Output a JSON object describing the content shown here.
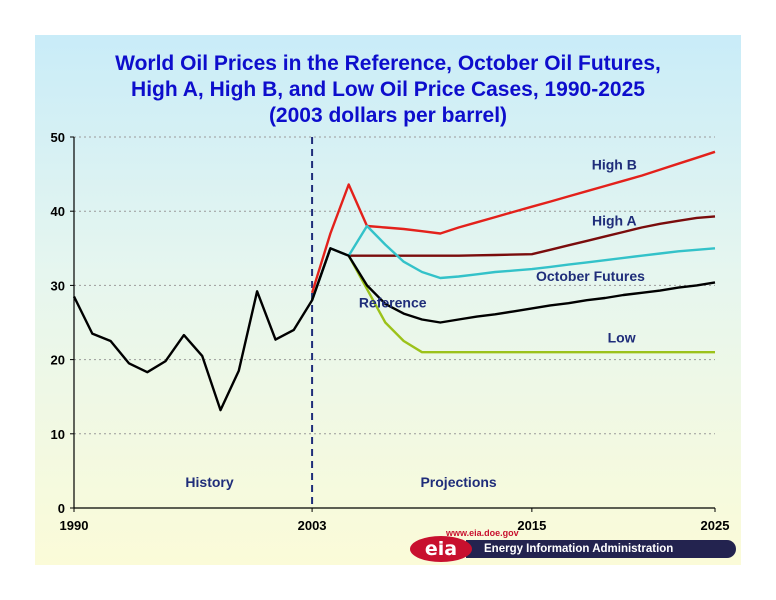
{
  "title_lines": [
    "World Oil Prices in the Reference, October Oil Futures,",
    "High A, High B, and Low Oil Price Cases, 1990-2025",
    "(2003 dollars per barrel)"
  ],
  "logo": {
    "url": "www.eia.doe.gov",
    "mark": "eia",
    "org": "Energy Information Administration"
  },
  "chart_data": {
    "type": "line",
    "title": "World Oil Prices in the Reference, October Oil Futures, High A, High B, and Low Oil Price Cases, 1990-2025 (2003 dollars per barrel)",
    "xlim": [
      1990,
      2025
    ],
    "ylim": [
      0,
      50
    ],
    "x_tick_labels": [
      "1990",
      "2003",
      "2015",
      "2025"
    ],
    "x_tick_values": [
      1990,
      2003,
      2015,
      2025
    ],
    "y_ticks": [
      0,
      10,
      20,
      30,
      40,
      50
    ],
    "grid": true,
    "divider_year": 2003,
    "annotations": [
      "History",
      "Projections"
    ],
    "series": [
      {
        "name": "High B",
        "color": "#e3211b",
        "points": [
          [
            2003,
            29
          ],
          [
            2004,
            37
          ],
          [
            2005,
            43.6
          ],
          [
            2006,
            38
          ],
          [
            2007,
            37.8
          ],
          [
            2008,
            37.6
          ],
          [
            2009,
            37.3
          ],
          [
            2010,
            37
          ],
          [
            2011,
            37.8
          ],
          [
            2012,
            38.5
          ],
          [
            2013,
            39.2
          ],
          [
            2014,
            39.9
          ],
          [
            2015,
            40.6
          ],
          [
            2016,
            41.3
          ],
          [
            2017,
            42
          ],
          [
            2018,
            42.7
          ],
          [
            2019,
            43.4
          ],
          [
            2020,
            44.1
          ],
          [
            2021,
            44.8
          ],
          [
            2022,
            45.6
          ],
          [
            2023,
            46.4
          ],
          [
            2024,
            47.2
          ],
          [
            2025,
            48
          ]
        ]
      },
      {
        "name": "High A",
        "color": "#7a0c0c",
        "points": [
          [
            2003,
            28
          ],
          [
            2004,
            35
          ],
          [
            2005,
            34
          ],
          [
            2006,
            34
          ],
          [
            2007,
            34
          ],
          [
            2008,
            34
          ],
          [
            2009,
            34
          ],
          [
            2010,
            34
          ],
          [
            2011,
            34
          ],
          [
            2012,
            34.05
          ],
          [
            2013,
            34.1
          ],
          [
            2014,
            34.15
          ],
          [
            2015,
            34.2
          ],
          [
            2016,
            34.8
          ],
          [
            2017,
            35.4
          ],
          [
            2018,
            36
          ],
          [
            2019,
            36.6
          ],
          [
            2020,
            37.2
          ],
          [
            2021,
            37.8
          ],
          [
            2022,
            38.3
          ],
          [
            2023,
            38.7
          ],
          [
            2024,
            39.1
          ],
          [
            2025,
            39.3
          ]
        ]
      },
      {
        "name": "October Futures",
        "color": "#33c2c9",
        "points": [
          [
            2003,
            28
          ],
          [
            2004,
            35
          ],
          [
            2005,
            34
          ],
          [
            2006,
            38
          ],
          [
            2007,
            35.5
          ],
          [
            2008,
            33.2
          ],
          [
            2009,
            31.8
          ],
          [
            2010,
            31
          ],
          [
            2011,
            31.2
          ],
          [
            2012,
            31.5
          ],
          [
            2013,
            31.8
          ],
          [
            2014,
            32
          ],
          [
            2015,
            32.2
          ],
          [
            2016,
            32.5
          ],
          [
            2017,
            32.8
          ],
          [
            2018,
            33.1
          ],
          [
            2019,
            33.4
          ],
          [
            2020,
            33.7
          ],
          [
            2021,
            34
          ],
          [
            2022,
            34.3
          ],
          [
            2023,
            34.6
          ],
          [
            2024,
            34.8
          ],
          [
            2025,
            35
          ]
        ]
      },
      {
        "name": "Reference",
        "color": "#000000",
        "points": [
          [
            1990,
            28.5
          ],
          [
            1991,
            23.5
          ],
          [
            1992,
            22.5
          ],
          [
            1993,
            19.5
          ],
          [
            1994,
            18.3
          ],
          [
            1995,
            19.8
          ],
          [
            1996,
            23.3
          ],
          [
            1997,
            20.5
          ],
          [
            1998,
            13.2
          ],
          [
            1999,
            18.5
          ],
          [
            2000,
            29.2
          ],
          [
            2001,
            22.7
          ],
          [
            2002,
            24
          ],
          [
            2003,
            28
          ],
          [
            2004,
            35
          ],
          [
            2005,
            34
          ],
          [
            2006,
            30
          ],
          [
            2007,
            27.5
          ],
          [
            2008,
            26.2
          ],
          [
            2009,
            25.4
          ],
          [
            2010,
            25
          ],
          [
            2011,
            25.4
          ],
          [
            2012,
            25.8
          ],
          [
            2013,
            26.1
          ],
          [
            2014,
            26.5
          ],
          [
            2015,
            26.9
          ],
          [
            2016,
            27.3
          ],
          [
            2017,
            27.6
          ],
          [
            2018,
            28
          ],
          [
            2019,
            28.3
          ],
          [
            2020,
            28.7
          ],
          [
            2021,
            29
          ],
          [
            2022,
            29.3
          ],
          [
            2023,
            29.7
          ],
          [
            2024,
            30
          ],
          [
            2025,
            30.4
          ]
        ]
      },
      {
        "name": "Low",
        "color": "#9cc21a",
        "points": [
          [
            2005,
            34
          ],
          [
            2006,
            29.5
          ],
          [
            2007,
            25
          ],
          [
            2008,
            22.5
          ],
          [
            2009,
            21
          ],
          [
            2010,
            21
          ],
          [
            2011,
            21
          ],
          [
            2012,
            21
          ],
          [
            2013,
            21
          ],
          [
            2014,
            21
          ],
          [
            2015,
            21
          ],
          [
            2016,
            21
          ],
          [
            2017,
            21
          ],
          [
            2018,
            21
          ],
          [
            2019,
            21
          ],
          [
            2020,
            21
          ],
          [
            2021,
            21
          ],
          [
            2022,
            21
          ],
          [
            2023,
            21
          ],
          [
            2024,
            21
          ],
          [
            2025,
            21
          ]
        ]
      }
    ],
    "series_labels": [
      "High B",
      "High A",
      "October Futures",
      "Reference",
      "Low"
    ]
  }
}
